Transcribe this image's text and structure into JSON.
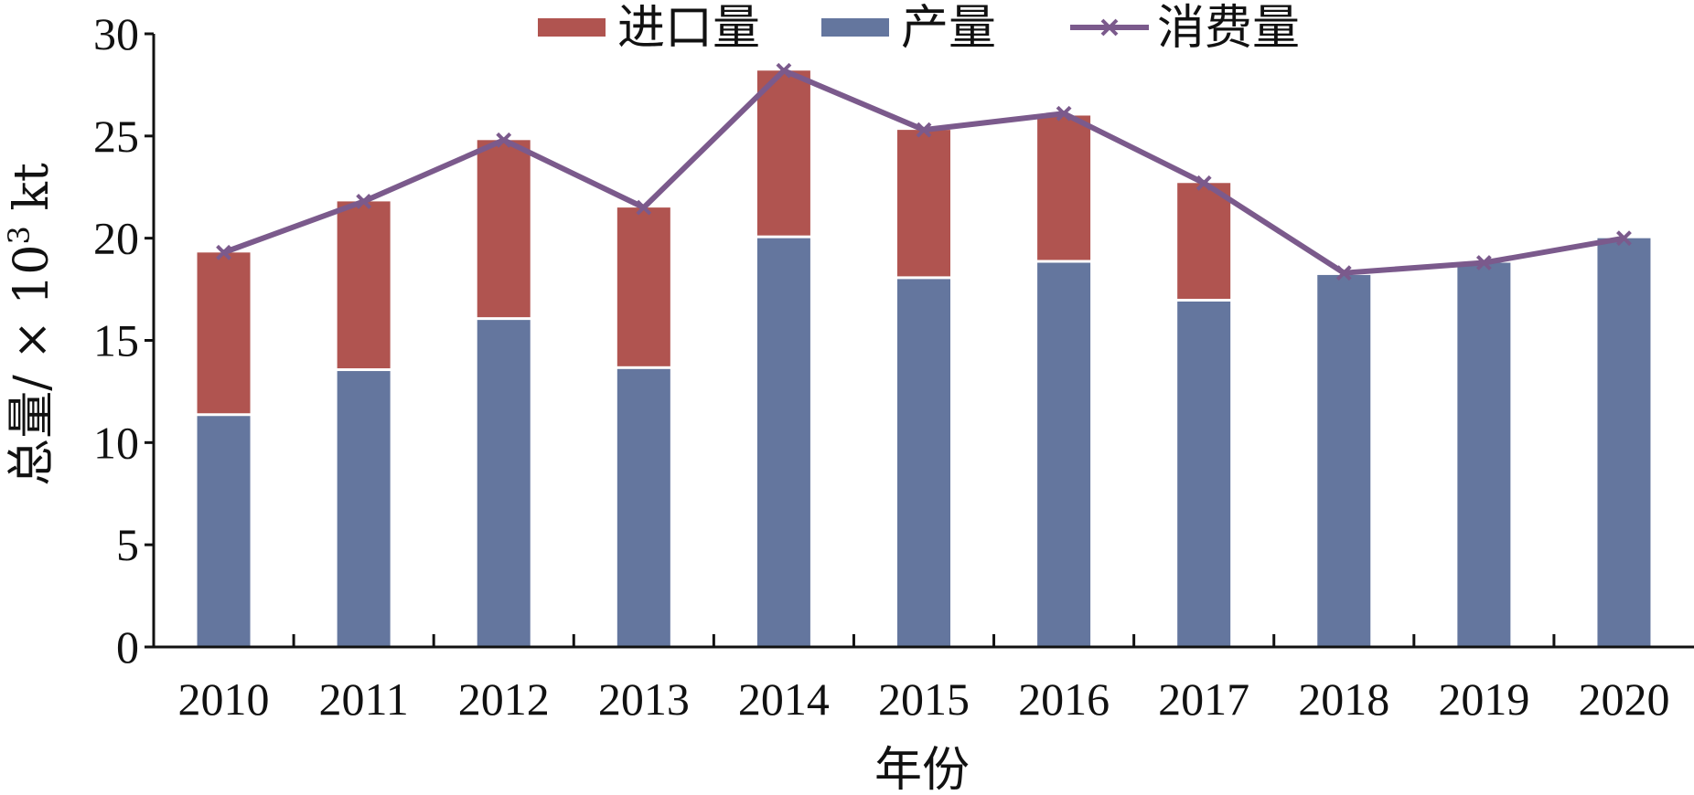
{
  "chart_data": {
    "type": "bar",
    "stacked": true,
    "categories": [
      "2010",
      "2011",
      "2012",
      "2013",
      "2014",
      "2015",
      "2016",
      "2017",
      "2018",
      "2019",
      "2020"
    ],
    "series": [
      {
        "name": "产量",
        "type": "bar",
        "color": "#64769e",
        "values": [
          11.3,
          13.5,
          16.0,
          13.6,
          20.0,
          18.0,
          18.8,
          16.9,
          18.2,
          18.8,
          20.0
        ]
      },
      {
        "name": "进口量",
        "type": "bar",
        "color": "#b05450",
        "values": [
          8.0,
          8.3,
          8.8,
          7.9,
          8.2,
          7.3,
          7.2,
          5.8,
          0,
          0,
          0
        ]
      },
      {
        "name": "消费量",
        "type": "line",
        "color": "#7b5a8c",
        "marker": "x",
        "values": [
          19.3,
          21.8,
          24.8,
          21.5,
          28.2,
          25.3,
          26.1,
          22.7,
          18.3,
          18.8,
          20.0
        ]
      }
    ],
    "legend": {
      "position": "top",
      "order": [
        "进口量",
        "产量",
        "消费量"
      ]
    },
    "xlabel": "年份",
    "ylabel_main": "总量/ × 10",
    "ylabel_exp": "3",
    "ylabel_unit": " kt",
    "ylim": [
      0,
      30
    ],
    "yticks": [
      "0",
      "5",
      "10",
      "15",
      "20",
      "25",
      "30"
    ],
    "grid": false
  }
}
